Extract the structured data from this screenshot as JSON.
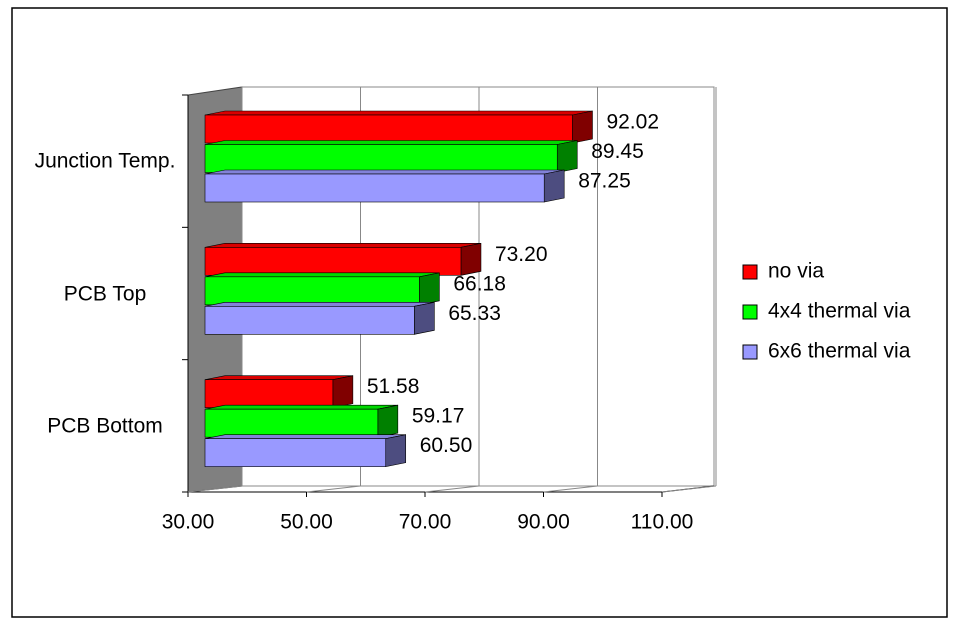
{
  "chart_data": {
    "type": "bar",
    "categories": [
      "Junction Temp.",
      "PCB Top",
      "PCB Bottom"
    ],
    "series": [
      {
        "name": "no via",
        "color": "#ff0000",
        "values": [
          92.02,
          73.2,
          51.58
        ],
        "value_labels": [
          "92.02",
          "73.20",
          "51.58"
        ]
      },
      {
        "name": "4x4 thermal via",
        "color": "#00ff00",
        "values": [
          89.45,
          66.18,
          59.17
        ],
        "value_labels": [
          "89.45",
          "66.18",
          "59.17"
        ]
      },
      {
        "name": "6x6 thermal via",
        "color": "#9999ff",
        "values": [
          87.25,
          65.33,
          60.5
        ],
        "value_labels": [
          "87.25",
          "65.33",
          "60.50"
        ]
      }
    ],
    "xlim": [
      30,
      110
    ],
    "xticks": [
      {
        "value": 30,
        "label": "30.00"
      },
      {
        "value": 50,
        "label": "50.00"
      },
      {
        "value": 70,
        "label": "70.00"
      },
      {
        "value": 90,
        "label": "90.00"
      },
      {
        "value": 110,
        "label": "110.00"
      }
    ],
    "grid": true,
    "legend": "right"
  }
}
